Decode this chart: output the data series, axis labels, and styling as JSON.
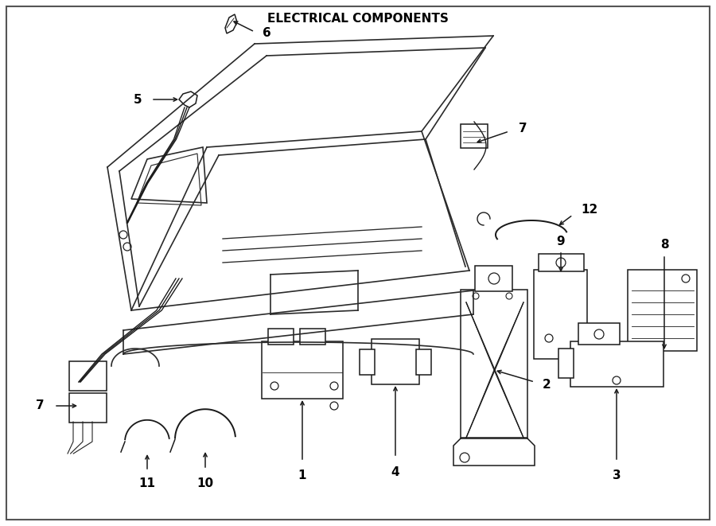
{
  "title": "ELECTRICAL COMPONENTS",
  "bg_color": "#ffffff",
  "line_color": "#1a1a1a",
  "text_color": "#000000",
  "title_fontsize": 11,
  "label_fontsize": 11,
  "fig_width": 9.0,
  "fig_height": 6.61,
  "dpi": 100,
  "border_color": "#555555",
  "car_line_color": "#2a2a2a",
  "car_lw": 1.2,
  "comp_lw": 1.1
}
